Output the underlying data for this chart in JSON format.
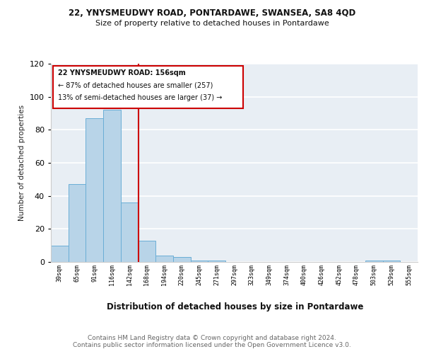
{
  "title1": "22, YNYSMEUDWY ROAD, PONTARDAWE, SWANSEA, SA8 4QD",
  "title2": "Size of property relative to detached houses in Pontardawe",
  "xlabel": "Distribution of detached houses by size in Pontardawe",
  "ylabel": "Number of detached properties",
  "bar_values": [
    10,
    47,
    87,
    92,
    36,
    13,
    4,
    3,
    1,
    1,
    0,
    0,
    0,
    0,
    0,
    0,
    0,
    0,
    1,
    1,
    0
  ],
  "x_labels": [
    "39sqm",
    "65sqm",
    "91sqm",
    "116sqm",
    "142sqm",
    "168sqm",
    "194sqm",
    "220sqm",
    "245sqm",
    "271sqm",
    "297sqm",
    "323sqm",
    "349sqm",
    "374sqm",
    "400sqm",
    "426sqm",
    "452sqm",
    "478sqm",
    "503sqm",
    "529sqm",
    "555sqm"
  ],
  "bar_color": "#b8d4e8",
  "bar_edge_color": "#6aaed6",
  "background_color": "#e8eef4",
  "red_line_color": "#cc0000",
  "annotation_title": "22 YNYSMEUDWY ROAD: 156sqm",
  "annotation_line1": "← 87% of detached houses are smaller (257)",
  "annotation_line2": "13% of semi-detached houses are larger (37) →",
  "footer1": "Contains HM Land Registry data © Crown copyright and database right 2024.",
  "footer2": "Contains public sector information licensed under the Open Government Licence v3.0.",
  "ylim": [
    0,
    120
  ],
  "yticks": [
    0,
    20,
    40,
    60,
    80,
    100,
    120
  ],
  "red_line_x": 5.0
}
